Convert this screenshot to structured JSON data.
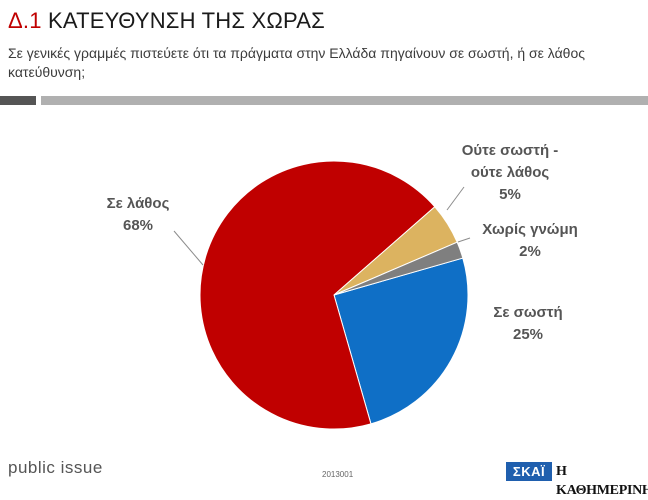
{
  "header": {
    "title_number": "Δ.1",
    "title_text": "ΚΑΤΕΥΘΥΝΣΗ  ΤΗΣ ΧΩΡΑΣ",
    "subtitle": "Σε γενικές γραμμές πιστεύετε ότι τα πράγματα στην Ελλάδα πηγαίνουν σε σωστή, ή σε λάθος κατεύθυνση;"
  },
  "footer": {
    "brand": "public issue",
    "code": "2013001",
    "logo_left": "ΣΚΑΪ",
    "logo_right": "Η ΚΑΘΗΜΕΡΙΝΗ"
  },
  "colors": {
    "accent": "#c00000",
    "rule_dark": "#555555",
    "rule_light": "#b0b0b0"
  },
  "chart_data": {
    "type": "pie",
    "title": "",
    "legend": "none",
    "slices": [
      {
        "name": "Σε σωστή",
        "value": 25,
        "label_lines": [
          "Σε σωστή",
          "25%"
        ],
        "color": "#0f6fc6"
      },
      {
        "name": "Σε λάθος",
        "value": 68,
        "label_lines": [
          "Σε λάθος",
          "68%"
        ],
        "color": "#c00000"
      },
      {
        "name": "Ούτε σωστή - ούτε λάθος",
        "value": 5,
        "label_lines": [
          "Ούτε σωστή -",
          "ούτε λάθος",
          "5%"
        ],
        "color": "#dcb360"
      },
      {
        "name": "Χωρίς γνώμη",
        "value": 2,
        "label_lines": [
          "Χωρίς γνώμη",
          "2%"
        ],
        "color": "#7f7f7f"
      }
    ]
  }
}
